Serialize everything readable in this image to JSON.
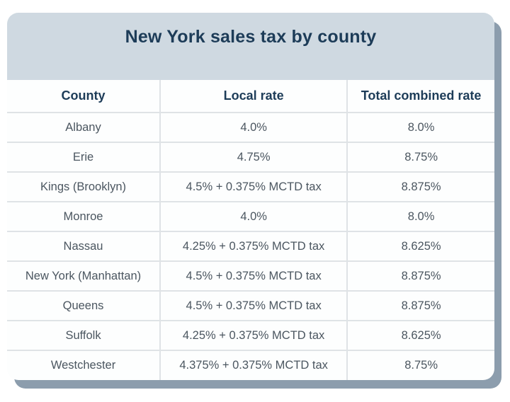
{
  "card": {
    "title": "New York sales tax by county"
  },
  "table": {
    "columns": [
      "County",
      "Local rate",
      "Total combined rate"
    ],
    "rows": [
      [
        "Albany",
        "4.0%",
        "8.0%"
      ],
      [
        "Erie",
        "4.75%",
        "8.75%"
      ],
      [
        "Kings (Brooklyn)",
        "4.5% + 0.375% MCTD tax",
        "8.875%"
      ],
      [
        "Monroe",
        "4.0%",
        "8.0%"
      ],
      [
        "Nassau",
        "4.25% + 0.375% MCTD tax",
        "8.625%"
      ],
      [
        "New York (Manhattan)",
        "4.5% + 0.375% MCTD tax",
        "8.875%"
      ],
      [
        "Queens",
        "4.5% + 0.375% MCTD tax",
        "8.875%"
      ],
      [
        "Suffolk",
        "4.25% + 0.375% MCTD tax",
        "8.625%"
      ],
      [
        "Westchester",
        "4.375% + 0.375% MCTD tax",
        "8.75%"
      ]
    ]
  },
  "colors": {
    "header_band": "#cfd9e1",
    "title_text": "#1d3c58",
    "cell_text": "#4b5660",
    "row_border": "#dfe3e6",
    "card_shadow": "#8c9dad",
    "card_background": "#fdfefe"
  },
  "chart_data": {
    "type": "table",
    "title": "New York sales tax by county",
    "columns": [
      "County",
      "Local rate",
      "Total combined rate"
    ],
    "rows": [
      {
        "county": "Albany",
        "local_rate": "4.0%",
        "total_combined_rate": "8.0%"
      },
      {
        "county": "Erie",
        "local_rate": "4.75%",
        "total_combined_rate": "8.75%"
      },
      {
        "county": "Kings (Brooklyn)",
        "local_rate": "4.5% + 0.375% MCTD tax",
        "total_combined_rate": "8.875%"
      },
      {
        "county": "Monroe",
        "local_rate": "4.0%",
        "total_combined_rate": "8.0%"
      },
      {
        "county": "Nassau",
        "local_rate": "4.25% + 0.375% MCTD tax",
        "total_combined_rate": "8.625%"
      },
      {
        "county": "New York (Manhattan)",
        "local_rate": "4.5% + 0.375% MCTD tax",
        "total_combined_rate": "8.875%"
      },
      {
        "county": "Queens",
        "local_rate": "4.5% + 0.375% MCTD tax",
        "total_combined_rate": "8.875%"
      },
      {
        "county": "Suffolk",
        "local_rate": "4.25% + 0.375% MCTD tax",
        "total_combined_rate": "8.625%"
      },
      {
        "county": "Westchester",
        "local_rate": "4.375% + 0.375% MCTD tax",
        "total_combined_rate": "8.75%"
      }
    ]
  }
}
